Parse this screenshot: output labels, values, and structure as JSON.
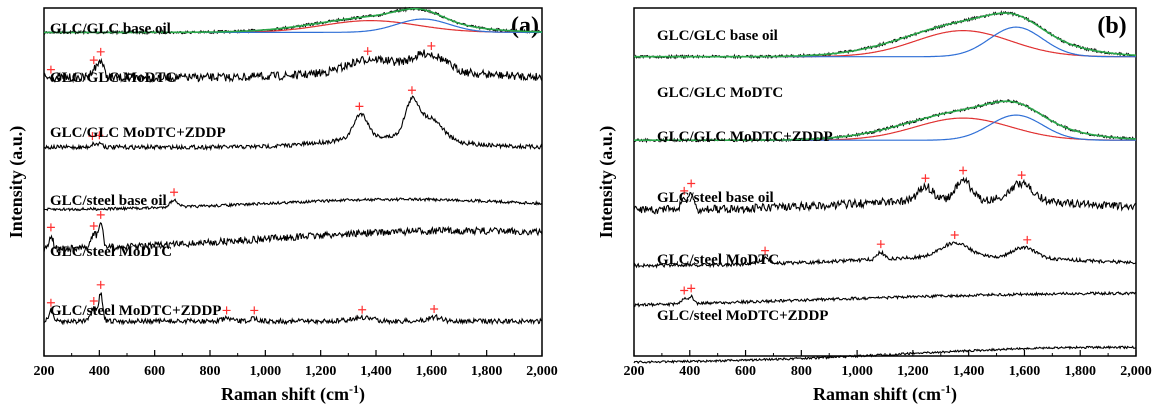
{
  "chart_data": [
    {
      "type": "line",
      "panel_label": "(a)",
      "xlabel": "Raman shift (cm",
      "xlabel_sup": "-1",
      "xlabel_end": ")",
      "ylabel": "Intensity (a.u.)",
      "xlim": [
        200,
        2000
      ],
      "x_ticks": [
        "200",
        "400",
        "600",
        "800",
        "1,000",
        "1,200",
        "1,400",
        "1,600",
        "1,800",
        "2,000"
      ],
      "series": [
        {
          "name": "GLC/GLC base oil",
          "fitted": true,
          "peaks": [
            1380,
            1560
          ],
          "base": 0.07,
          "noise": 0.004,
          "features": [
            [
              1420,
              220,
              0.045
            ],
            [
              1560,
              80,
              0.03
            ]
          ]
        },
        {
          "name": "GLC/GLC MoDTC",
          "peaks": [
            225,
            380,
            405,
            1370,
            1600
          ],
          "base": 0.2,
          "noise": 0.012,
          "features": [
            [
              405,
              10,
              0.05
            ],
            [
              380,
              10,
              0.025
            ],
            [
              1380,
              80,
              0.035
            ],
            [
              1590,
              60,
              0.05
            ],
            [
              1480,
              250,
              0.02
            ]
          ]
        },
        {
          "name": "GLC/GLC MoDTC+ZDDP",
          "peaks": [
            375,
            400,
            1340,
            1530
          ],
          "base": 0.4,
          "noise": 0.006,
          "features": [
            [
              1345,
              25,
              0.07
            ],
            [
              1530,
              25,
              0.1
            ],
            [
              1600,
              40,
              0.06
            ],
            [
              1450,
              200,
              0.03
            ],
            [
              380,
              10,
              0.01
            ],
            [
              405,
              8,
              0.012
            ]
          ]
        },
        {
          "name": "GLC/steel base oil",
          "peaks": [
            670
          ],
          "base": 0.58,
          "noise": 0.004,
          "features": [
            [
              670,
              15,
              0.02
            ],
            [
              1500,
              500,
              0.03
            ]
          ]
        },
        {
          "name": "GLC/steel MoDTC",
          "peaks": [
            225,
            380,
            405
          ],
          "base": 0.7,
          "noise": 0.01,
          "features": [
            [
              225,
              8,
              0.04
            ],
            [
              380,
              10,
              0.04
            ],
            [
              405,
              8,
              0.07
            ],
            [
              1700,
              700,
              0.06
            ]
          ]
        },
        {
          "name": "GLC/steel MoDTC+ZDDP",
          "peaks": [
            225,
            380,
            405,
            860,
            960,
            1350,
            1610
          ],
          "base": 0.9,
          "noise": 0.007,
          "features": [
            [
              225,
              8,
              0.03
            ],
            [
              380,
              10,
              0.035
            ],
            [
              405,
              7,
              0.08
            ],
            [
              860,
              15,
              0.008
            ],
            [
              960,
              15,
              0.008
            ],
            [
              1350,
              40,
              0.01
            ],
            [
              1610,
              25,
              0.012
            ]
          ]
        }
      ]
    },
    {
      "type": "line",
      "panel_label": "(b)",
      "xlabel": "Raman shift (cm",
      "xlabel_sup": "-1",
      "xlabel_end": ")",
      "ylabel": "Intensity (a.u.)",
      "xlim": [
        200,
        2000
      ],
      "x_ticks": [
        "200",
        "400",
        "600",
        "800",
        "1,000",
        "1,200",
        "1,400",
        "1,600",
        "1,800",
        "2,000"
      ],
      "series": [
        {
          "name": "GLC/GLC base oil",
          "fitted": true,
          "peaks": [
            1390,
            1580
          ],
          "base": 0.14,
          "noise": 0.004,
          "features": [
            [
              1420,
              230,
              0.1
            ],
            [
              1570,
              90,
              0.04
            ]
          ]
        },
        {
          "name": "GLC/GLC MoDTC",
          "fitted": true,
          "peaks": [
            1390,
            1580
          ],
          "base": 0.38,
          "noise": 0.004,
          "features": [
            [
              1420,
              230,
              0.085
            ],
            [
              1570,
              90,
              0.04
            ]
          ]
        },
        {
          "name": "GLC/GLC MoDTC+ZDDP",
          "peaks": [
            380,
            405,
            1245,
            1380,
            1590
          ],
          "base": 0.58,
          "noise": 0.012,
          "features": [
            [
              405,
              8,
              0.05
            ],
            [
              380,
              10,
              0.03
            ],
            [
              1245,
              25,
              0.04
            ],
            [
              1380,
              25,
              0.06
            ],
            [
              1590,
              40,
              0.05
            ],
            [
              1400,
              400,
              0.03
            ]
          ]
        },
        {
          "name": "GLC/steel base oil",
          "peaks": [
            670,
            1085,
            1350,
            1610
          ],
          "base": 0.74,
          "noise": 0.005,
          "features": [
            [
              670,
              20,
              0.015
            ],
            [
              1085,
              12,
              0.02
            ],
            [
              1350,
              50,
              0.04
            ],
            [
              1600,
              40,
              0.03
            ],
            [
              1400,
              400,
              0.025
            ]
          ]
        },
        {
          "name": "GLC/steel MoDTC",
          "peaks": [
            380,
            405
          ],
          "base": 0.87,
          "noise": 0.004,
          "features": [
            [
              380,
              10,
              0.015
            ],
            [
              405,
              8,
              0.02
            ],
            [
              2000,
              1200,
              0.05
            ]
          ]
        },
        {
          "name": "GLC/steel MoDTC+ZDDP",
          "peaks": [],
          "base": 1.02,
          "noise": 0.003,
          "features": [
            [
              1900,
              700,
              0.045
            ]
          ]
        }
      ]
    }
  ],
  "colors": {
    "trace": "#000000",
    "fit_envelope": "#2aa84a",
    "fit_d_band": "#e03030",
    "fit_g_band": "#2f6fd6",
    "peak_marker": "#ff3030"
  }
}
